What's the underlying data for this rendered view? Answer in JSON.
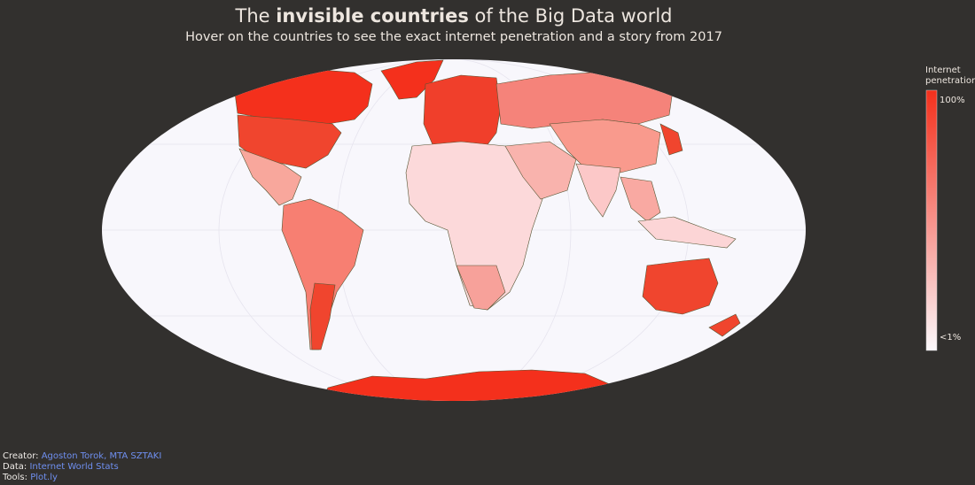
{
  "header": {
    "title_parts": [
      "The ",
      "invisible countries",
      " of the Big Data world"
    ],
    "subtitle": "Hover on the countries to see the exact internet penetration and a story from 2017"
  },
  "legend": {
    "title": [
      "Internet",
      "penetration"
    ],
    "labels": [
      "100%",
      "<1%"
    ]
  },
  "credits": [
    {
      "label": "Creator:",
      "text": "Agoston Torok, MTA SZTAKI"
    },
    {
      "label": "Data:",
      "text": "Internet World Stats"
    },
    {
      "label": "Tools:",
      "text": "Plot.ly"
    }
  ]
}
